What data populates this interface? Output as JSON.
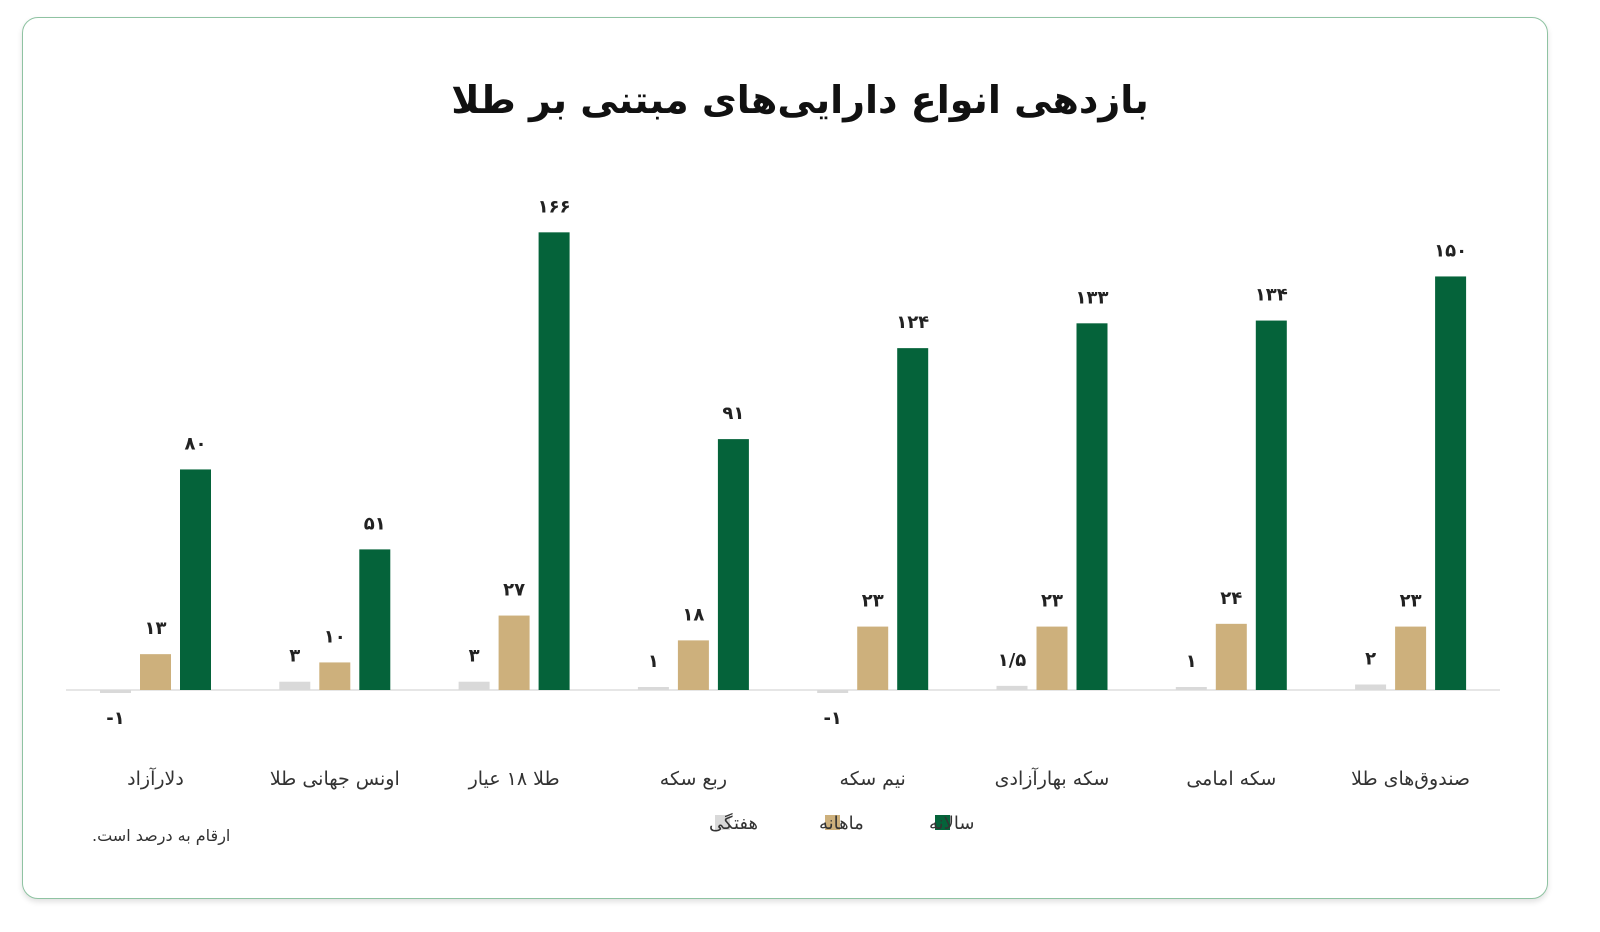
{
  "chart_data": {
    "type": "bar",
    "title": "بازدهی انواع دارایی‌های مبتنی بر طلا",
    "xlabel": "",
    "ylabel": "",
    "categories": [
      "دلارآزاد",
      "اونس جهانی طلا",
      "طلا ۱۸ عیار",
      "ربع سکه",
      "نیم سکه",
      "سکه بهارآزادی",
      "سکه امامی",
      "صندوق‌های طلا"
    ],
    "series": [
      {
        "name": "هفتگی",
        "color": "#d9d9d9",
        "values": [
          -1,
          3,
          3,
          1,
          -1,
          1.5,
          1,
          2
        ],
        "labels": [
          "-۱",
          "۳",
          "۳",
          "۱",
          "-۱",
          "۱/۵",
          "۱",
          "۲"
        ]
      },
      {
        "name": "ماهانه",
        "color": "#cdb07c",
        "values": [
          13,
          10,
          27,
          18,
          23,
          23,
          24,
          23
        ],
        "labels": [
          "۱۳",
          "۱۰",
          "۲۷",
          "۱۸",
          "۲۳",
          "۲۳",
          "۲۴",
          "۲۳"
        ]
      },
      {
        "name": "سالانه",
        "color": "#05633a",
        "values": [
          80,
          51,
          166,
          91,
          124,
          133,
          134,
          150
        ],
        "labels": [
          "۸۰",
          "۵۱",
          "۱۶۶",
          "۹۱",
          "۱۲۴",
          "۱۳۳",
          "۱۳۴",
          "۱۵۰"
        ]
      }
    ],
    "ylim": [
      -1,
      166
    ],
    "grid": false,
    "legend_position": "bottom-center",
    "note": "ارقام به درصد است."
  }
}
